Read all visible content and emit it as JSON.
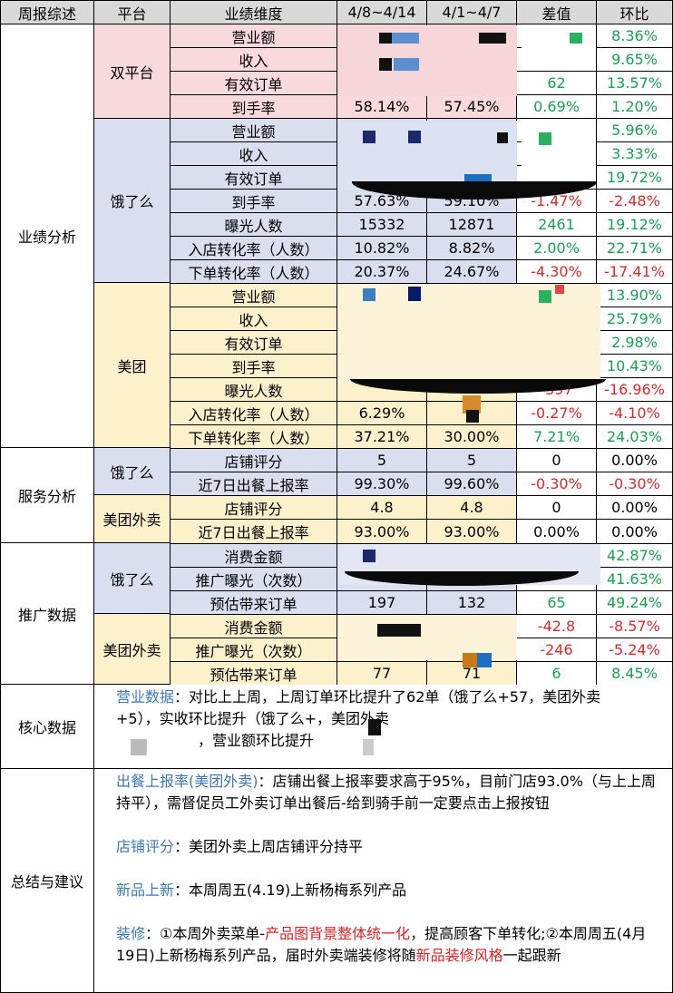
{
  "header": {
    "summary": "周报综述",
    "platform": "平台",
    "dimension": "业绩维度",
    "week1": "4/8~4/14",
    "week2": "4/1~4/7",
    "diff": "差值",
    "ratio": "环比"
  },
  "sections": {
    "perf": "业绩分析",
    "service": "服务分析",
    "promo": "推广数据",
    "core": "核心数据",
    "summary": "总结与建议"
  },
  "platforms": {
    "dual": "双平台",
    "ele": "饿了么",
    "mt": "美团",
    "svc_ele": "饿了么",
    "svc_mt": "美团外卖",
    "pro_ele": "饿了么",
    "pro_mt": "美团外卖"
  },
  "rows": [
    {
      "dim": "营业额",
      "w1": "",
      "w2": "",
      "diff": "",
      "ratio": "8.36%",
      "dc": "green",
      "rc": "green"
    },
    {
      "dim": "收入",
      "w1": "",
      "w2": "",
      "diff": "",
      "ratio": "9.65%",
      "dc": "green",
      "rc": "green"
    },
    {
      "dim": "有效订单",
      "w1": "",
      "w2": "",
      "diff": "62",
      "ratio": "13.57%",
      "dc": "green",
      "rc": "green"
    },
    {
      "dim": "到手率",
      "w1": "58.14%",
      "w2": "57.45%",
      "diff": "0.69%",
      "ratio": "1.20%",
      "dc": "green",
      "rc": "green"
    },
    {
      "dim": "营业额",
      "w1": "",
      "w2": "",
      "diff": "",
      "ratio": "5.96%",
      "dc": "green",
      "rc": "green"
    },
    {
      "dim": "收入",
      "w1": "",
      "w2": "",
      "diff": "",
      "ratio": "3.33%",
      "dc": "green",
      "rc": "green"
    },
    {
      "dim": "有效订单",
      "w1": "",
      "w2": "",
      "diff": "",
      "ratio": "19.72%",
      "dc": "green",
      "rc": "green"
    },
    {
      "dim": "到手率",
      "w1": "57.63%",
      "w2": "59.10%",
      "diff": "-1.47%",
      "ratio": "-2.48%",
      "dc": "red",
      "rc": "red"
    },
    {
      "dim": "曝光人数",
      "w1": "15332",
      "w2": "12871",
      "diff": "2461",
      "ratio": "19.12%",
      "dc": "green",
      "rc": "green"
    },
    {
      "dim": "入店转化率（人数）",
      "w1": "10.82%",
      "w2": "8.82%",
      "diff": "2.00%",
      "ratio": "22.71%",
      "dc": "green",
      "rc": "green"
    },
    {
      "dim": "下单转化率（人数）",
      "w1": "20.37%",
      "w2": "24.67%",
      "diff": "-4.30%",
      "ratio": "-17.41%",
      "dc": "red",
      "rc": "red"
    },
    {
      "dim": "营业额",
      "w1": "",
      "w2": "",
      "diff": "",
      "ratio": "13.90%",
      "dc": "green",
      "rc": "green"
    },
    {
      "dim": "收入",
      "w1": "",
      "w2": "",
      "diff": "",
      "ratio": "25.79%",
      "dc": "green",
      "rc": "green"
    },
    {
      "dim": "有效订单",
      "w1": "",
      "w2": "",
      "diff": "",
      "ratio": "2.98%",
      "dc": "green",
      "rc": "green"
    },
    {
      "dim": "到手率",
      "w1": "",
      "w2": "",
      "diff": "",
      "ratio": "10.43%",
      "dc": "green",
      "rc": "green"
    },
    {
      "dim": "曝光人数",
      "w1": "",
      "w2": "",
      "diff": "-397",
      "ratio": "-16.96%",
      "dc": "red",
      "rc": "red"
    },
    {
      "dim": "入店转化率（人数）",
      "w1": "6.29%",
      "w2": "",
      "diff": "-0.27%",
      "ratio": "-4.10%",
      "dc": "red",
      "rc": "red"
    },
    {
      "dim": "下单转化率（人数）",
      "w1": "37.21%",
      "w2": "30.00%",
      "diff": "7.21%",
      "ratio": "24.03%",
      "dc": "green",
      "rc": "green"
    },
    {
      "dim": "店铺评分",
      "w1": "5",
      "w2": "5",
      "diff": "0",
      "ratio": "0.00%",
      "dc": "black",
      "rc": "black"
    },
    {
      "dim": "近7日出餐上报率",
      "w1": "99.30%",
      "w2": "99.60%",
      "diff": "-0.30%",
      "ratio": "-0.30%",
      "dc": "red",
      "rc": "red"
    },
    {
      "dim": "店铺评分",
      "w1": "4.8",
      "w2": "4.8",
      "diff": "0",
      "ratio": "0.00%",
      "dc": "black",
      "rc": "black"
    },
    {
      "dim": "近7日出餐上报率",
      "w1": "93.00%",
      "w2": "93.00%",
      "diff": "0.00%",
      "ratio": "0.00%",
      "dc": "black",
      "rc": "black"
    },
    {
      "dim": "消费金额",
      "w1": "",
      "w2": "",
      "diff": "",
      "ratio": "42.87%",
      "dc": "green",
      "rc": "green"
    },
    {
      "dim": "推广曝光（次数）",
      "w1": "",
      "w2": "",
      "diff": "",
      "ratio": "41.63%",
      "dc": "green",
      "rc": "green"
    },
    {
      "dim": "预估带来订单",
      "w1": "197",
      "w2": "132",
      "diff": "65",
      "ratio": "49.24%",
      "dc": "green",
      "rc": "green"
    },
    {
      "dim": "消费金额",
      "w1": "",
      "w2": "",
      "diff": "-42.8",
      "ratio": "-8.57%",
      "dc": "red",
      "rc": "red"
    },
    {
      "dim": "推广曝光（次数）",
      "w1": "",
      "w2": "",
      "diff": "-246",
      "ratio": "-5.24%",
      "dc": "red",
      "rc": "red"
    },
    {
      "dim": "预估带来订单",
      "w1": "77",
      "w2": "71",
      "diff": "6",
      "ratio": "8.45%",
      "dc": "green",
      "rc": "green"
    }
  ],
  "core": {
    "key": "营业数据",
    "line1": "：对比上上周，上周订单环比提升了62单（饿了么+57，美团外卖",
    "line2": "+5），实收环比提升",
    "line2b": "（饿了么+",
    "line2c": "，美团外卖",
    "line3": "，营业额环比提升"
  },
  "summary": {
    "p1_key": "出餐上报率(美团外卖)",
    "p1_text": "：店铺出餐上报率要求高于95%，目前门店93.0%（与上上周持平），需督促员工外卖订单出餐后-给到骑手前一定要点击上报按钮",
    "p2_key": "店铺评分",
    "p2_text": "：美团外卖上周店铺评分持平",
    "p3_key": "新品上新",
    "p3_text": "：本周周五(4.19)上新杨梅系列产品",
    "p4_key": "装修",
    "p4_a": "：①本周外卖菜单-",
    "p4_hl1": "产品图背景整体统一化",
    "p4_b": "，提高顾客下单转化;②本周周五(4月19日)上新杨梅系列产品，届时外卖端装修将随",
    "p4_hl2": "新品装修风格",
    "p4_c": "一起跟新"
  },
  "colors": {
    "header_bg": "#d9d9d9",
    "dual_bg": "#f8d9dc",
    "ele_bg": "#dadff0",
    "mt_bg": "#fdf1cc",
    "green_text": "#1aa051",
    "red_text": "#d82a2a",
    "key_text": "#3c78b4"
  }
}
